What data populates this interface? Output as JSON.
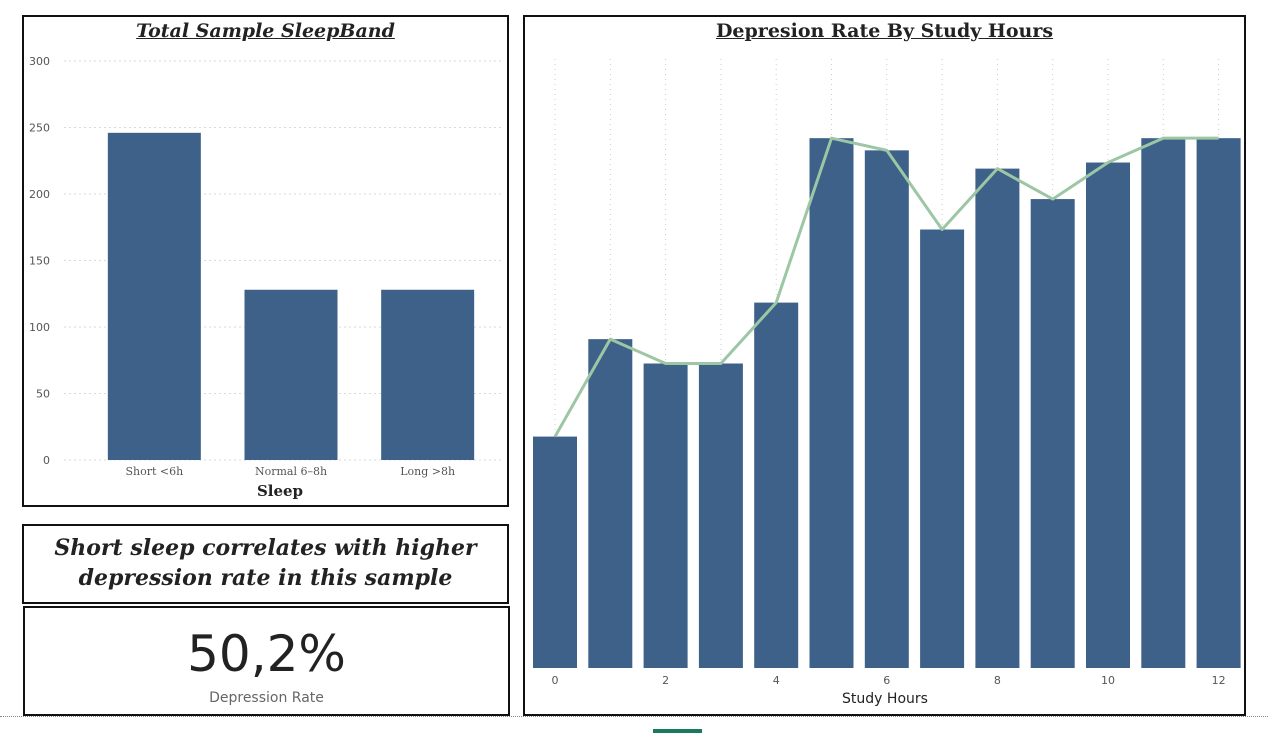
{
  "chart_data": [
    {
      "type": "bar",
      "title": "Total Sample SleepBand",
      "xlabel": "Sleep",
      "ylabel": "",
      "categories": [
        "Short <6h",
        "Normal 6–8h",
        "Long >8h"
      ],
      "values": [
        246,
        128,
        128
      ],
      "ylim": [
        0,
        300
      ],
      "yticks": [
        0,
        50,
        100,
        150,
        200,
        250,
        300
      ],
      "grid": true,
      "colors": {
        "bar": "#3e6189",
        "grid": "#d9d9d9"
      }
    },
    {
      "type": "bar",
      "title": "Depresion Rate By Study Hours",
      "xlabel": "Study Hours",
      "ylabel": "",
      "x": [
        0,
        1,
        2,
        3,
        4,
        5,
        6,
        7,
        8,
        9,
        10,
        11,
        12
      ],
      "xticks": [
        0,
        2,
        4,
        6,
        8,
        10,
        12
      ],
      "series": [
        {
          "type": "bar",
          "values": [
            38,
            54,
            50,
            50,
            60,
            87,
            85,
            72,
            82,
            77,
            83,
            87,
            87
          ]
        },
        {
          "type": "line",
          "values": [
            38,
            54,
            50,
            50,
            60,
            87,
            85,
            72,
            82,
            77,
            83,
            87,
            87
          ]
        }
      ],
      "ylim": [
        0,
        100
      ],
      "grid": true,
      "colors": {
        "bar": "#3e6189",
        "line": "#9dc6a4",
        "grid": "#cccccc"
      }
    }
  ],
  "insight": {
    "line1": "Short sleep correlates with higher",
    "line2": "depression rate in this sample"
  },
  "kpi": {
    "value": "50,2%",
    "label": "Depression Rate"
  }
}
